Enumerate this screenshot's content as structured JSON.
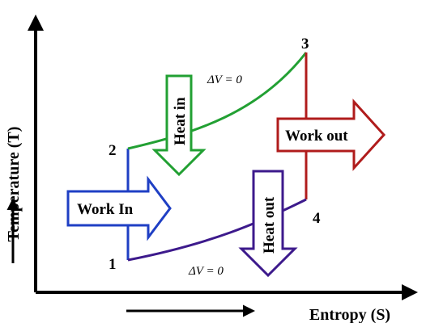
{
  "axes": {
    "x_label": "Entropy (S)",
    "y_label": "Temperature (T)"
  },
  "points": {
    "p1": "1",
    "p2": "2",
    "p3": "3",
    "p4": "4"
  },
  "annotations": {
    "dv_top": "ΔV = 0",
    "dv_bottom": "ΔV = 0"
  },
  "arrows": {
    "work_in": "Work In",
    "heat_in": "Heat in",
    "work_out": "Work out",
    "heat_out": "Heat out"
  },
  "colors": {
    "blue": "#1f3fc4",
    "green": "#22a033",
    "red": "#b01c1c",
    "purple": "#3d1a8c",
    "axis": "#000000"
  }
}
